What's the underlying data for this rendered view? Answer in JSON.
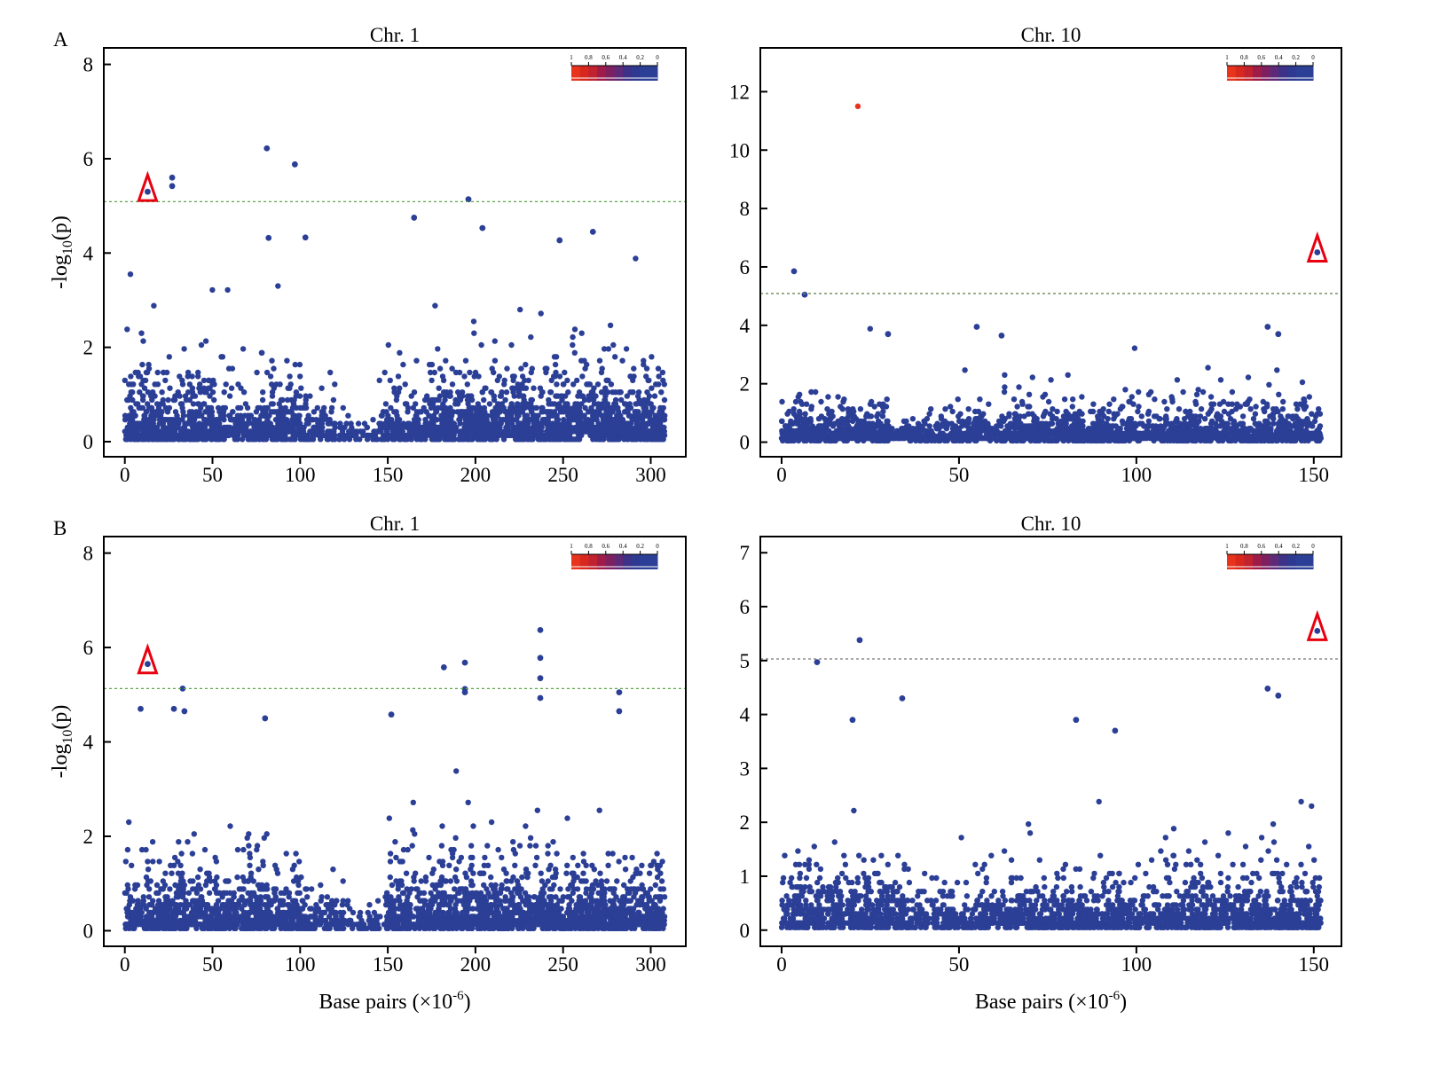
{
  "figure": {
    "point_color": "#2b3f96",
    "lead_color": "#e8341c",
    "marker_color": "#e8000f",
    "threshold_color": "#5aa84a",
    "threshold_color_b_right": "#777777",
    "colorbar_labels": [
      "1",
      "0.8",
      "0.6",
      "0.4",
      "0.2",
      "0"
    ],
    "colorbar_colors": [
      "#e8341c",
      "#d8281e",
      "#c02230",
      "#a01c48",
      "#7e2060",
      "#5e2a78",
      "#3d3288",
      "#2e3a92",
      "#2b3f96",
      "#2b3f96"
    ]
  },
  "chart_data": [
    {
      "type": "scatter",
      "panel_letter": "A",
      "title": "Chr. 1",
      "ylabel": "-log",
      "ylabel_sub": "10",
      "ylabel_tail": "(p)",
      "xlabel": "",
      "xlim": [
        -12,
        320
      ],
      "ylim": [
        -0.32,
        8.35
      ],
      "xticks": [
        0,
        50,
        100,
        150,
        200,
        250,
        300
      ],
      "yticks": [
        0,
        2,
        4,
        6,
        8
      ],
      "threshold": 5.09,
      "highlight_marker": [
        13,
        5.3
      ],
      "notable_points": [
        [
          13,
          5.3
        ],
        [
          27,
          5.6
        ],
        [
          27,
          5.42
        ],
        [
          81,
          6.22
        ],
        [
          97,
          5.88
        ],
        [
          196,
          5.14
        ],
        [
          165,
          4.75
        ],
        [
          204,
          4.53
        ],
        [
          267,
          4.45
        ],
        [
          248,
          4.27
        ],
        [
          82,
          4.32
        ],
        [
          103,
          4.33
        ]
      ],
      "background": {
        "n": 2600,
        "seed": 11,
        "xmax": 308,
        "segments": [
          [
            0,
            60,
            1.0,
            0.95
          ],
          [
            60,
            75,
            0.6,
            0.8
          ],
          [
            75,
            100,
            1.0,
            1.0
          ],
          [
            100,
            120,
            0.6,
            0.6
          ],
          [
            120,
            145,
            0.25,
            0.35
          ],
          [
            145,
            175,
            0.8,
            0.8
          ],
          [
            175,
            230,
            1.1,
            1.0
          ],
          [
            230,
            308,
            1.1,
            1.0
          ]
        ]
      }
    },
    {
      "type": "scatter",
      "panel_letter": "",
      "title": "Chr. 10",
      "xlabel": "",
      "xlim": [
        -6,
        157.8
      ],
      "ylim": [
        -0.5,
        13.5
      ],
      "xticks": [
        0,
        50,
        100,
        150
      ],
      "yticks": [
        0,
        2,
        4,
        6,
        8,
        10,
        12
      ],
      "threshold": 5.09,
      "highlight_marker": [
        151,
        6.5
      ],
      "lead_point": [
        21.5,
        11.5
      ],
      "notable_points": [
        [
          3.5,
          5.85
        ],
        [
          6.5,
          5.05
        ],
        [
          151,
          6.5
        ],
        [
          55,
          3.95
        ],
        [
          30,
          3.7
        ],
        [
          137,
          3.95
        ],
        [
          140,
          3.7
        ],
        [
          62,
          3.65
        ]
      ],
      "background": {
        "n": 2200,
        "seed": 23,
        "xmax": 152,
        "segments": [
          [
            0,
            30,
            1.1,
            0.85
          ],
          [
            30,
            50,
            0.7,
            0.55
          ],
          [
            50,
            100,
            1.0,
            0.75
          ],
          [
            100,
            110,
            0.8,
            0.7
          ],
          [
            110,
            152,
            1.1,
            0.85
          ]
        ]
      }
    },
    {
      "type": "scatter",
      "panel_letter": "B",
      "title": "Chr. 1",
      "ylabel": "-log",
      "ylabel_sub": "10",
      "ylabel_tail": "(p)",
      "xlabel": "Base pairs (×10",
      "xlabel_sup": "-6",
      "xlabel_tail": ")",
      "xlim": [
        -12,
        320
      ],
      "ylim": [
        -0.33,
        8.35
      ],
      "xticks": [
        0,
        50,
        100,
        150,
        200,
        250,
        300
      ],
      "yticks": [
        0,
        2,
        4,
        6,
        8
      ],
      "threshold": 5.13,
      "highlight_marker": [
        13,
        5.65
      ],
      "notable_points": [
        [
          13,
          5.65
        ],
        [
          33,
          5.13
        ],
        [
          9,
          4.7
        ],
        [
          182,
          5.58
        ],
        [
          194,
          5.68
        ],
        [
          194,
          5.12
        ],
        [
          194,
          5.05
        ],
        [
          237,
          6.37
        ],
        [
          237,
          5.78
        ],
        [
          237,
          5.35
        ],
        [
          237,
          4.93
        ],
        [
          282,
          5.05
        ],
        [
          282,
          4.65
        ],
        [
          152,
          4.58
        ],
        [
          28,
          4.7
        ],
        [
          34,
          4.65
        ],
        [
          80,
          4.5
        ]
      ],
      "background": {
        "n": 2600,
        "seed": 37,
        "xmax": 308,
        "segments": [
          [
            0,
            60,
            1.0,
            0.85
          ],
          [
            60,
            100,
            1.0,
            0.9
          ],
          [
            100,
            125,
            0.6,
            0.6
          ],
          [
            125,
            148,
            0.3,
            0.35
          ],
          [
            148,
            200,
            1.1,
            0.95
          ],
          [
            200,
            308,
            1.05,
            0.85
          ]
        ]
      }
    },
    {
      "type": "scatter",
      "panel_letter": "",
      "title": "Chr. 10",
      "xlabel": "Base pairs (×10",
      "xlabel_sup": "-6",
      "xlabel_tail": ")",
      "xlim": [
        -6,
        157.8
      ],
      "ylim": [
        -0.3,
        7.3
      ],
      "xticks": [
        0,
        50,
        100,
        150
      ],
      "yticks": [
        0,
        1,
        2,
        3,
        4,
        5,
        6,
        7
      ],
      "threshold": 5.03,
      "highlight_marker": [
        151,
        5.55
      ],
      "notable_points": [
        [
          10,
          4.97
        ],
        [
          22,
          5.38
        ],
        [
          151,
          5.55
        ],
        [
          34,
          4.3
        ],
        [
          137,
          4.48
        ],
        [
          140,
          4.35
        ],
        [
          83,
          3.9
        ],
        [
          20,
          3.9
        ],
        [
          94,
          3.7
        ]
      ],
      "background": {
        "n": 2200,
        "seed": 41,
        "xmax": 152,
        "segments": [
          [
            0,
            36,
            1.1,
            0.75
          ],
          [
            36,
            55,
            0.7,
            0.45
          ],
          [
            55,
            100,
            1.0,
            0.65
          ],
          [
            100,
            108,
            0.7,
            0.5
          ],
          [
            108,
            152,
            1.1,
            0.7
          ]
        ]
      }
    }
  ]
}
